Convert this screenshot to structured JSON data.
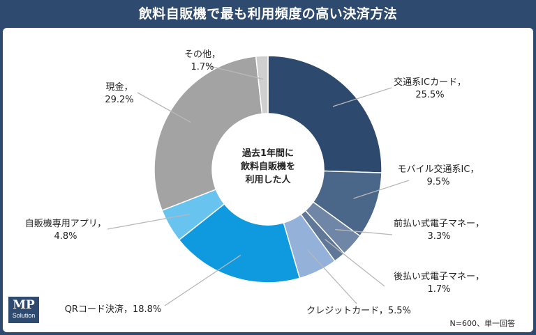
{
  "chart_data": {
    "type": "pie",
    "title": "飲料自販機で最も利用頻度の高い決済方法",
    "center_label": [
      "過去1年間に",
      "飲料自販機を",
      "利用した人"
    ],
    "note": "N=600、単一回答",
    "slices": [
      {
        "label": "交通系ICカード",
        "value": 25.5,
        "value_label": "25.5%",
        "color": "#2d4a6e"
      },
      {
        "label": "モバイル交通系IC",
        "value": 9.5,
        "value_label": "9.5%",
        "color": "#4a6689"
      },
      {
        "label": "前払い式電子マネー",
        "value": 3.3,
        "value_label": "3.3%",
        "color": "#6f86a6"
      },
      {
        "label": "後払い式電子マネー",
        "value": 1.7,
        "value_label": "1.7%",
        "color": "#5f7897"
      },
      {
        "label": "クレジットカード",
        "value": 5.5,
        "value_label": "5.5%",
        "color": "#94b1da"
      },
      {
        "label": "QRコード決済",
        "value": 18.8,
        "value_label": "18.8%",
        "color": "#0f9ae0"
      },
      {
        "label": "自販機専用アプリ",
        "value": 4.8,
        "value_label": "4.8%",
        "color": "#69c3ef"
      },
      {
        "label": "現金",
        "value": 29.2,
        "value_label": "29.2%",
        "color": "#a3a3a3"
      },
      {
        "label": "その他",
        "value": 1.7,
        "value_label": "1.7%",
        "color": "#cfcfcf"
      }
    ]
  },
  "logo": {
    "main": "MP",
    "sub": "Solution"
  }
}
